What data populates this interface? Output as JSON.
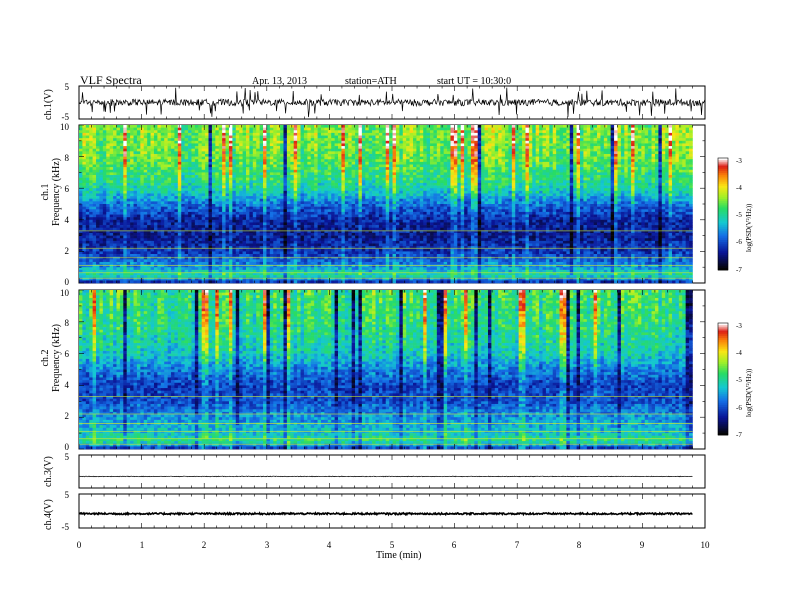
{
  "header": {
    "title": "VLF Spectra",
    "date": "Apr. 13, 2013",
    "station": "station=ATH",
    "start": "start UT =   10:30:0"
  },
  "chart_data": [
    {
      "type": "line",
      "name": "ch1-waveform",
      "ylabel": "ch.1(V)",
      "ylim": [
        -5,
        5
      ],
      "yticks": [
        "5",
        "-5"
      ],
      "xlim": [
        0,
        10
      ],
      "line_color": "#000000",
      "baseline_v": 0.0,
      "noise_amplitude_v": 1.0,
      "spike_amplitude_v": 4.5
    },
    {
      "type": "heatmap",
      "name": "ch1-spectrogram",
      "ylabel": "ch.1\nFrequency (kHz)",
      "ylim": [
        0,
        10
      ],
      "yticks": [
        "0",
        "2",
        "4",
        "6",
        "8",
        "10"
      ],
      "xlim": [
        0,
        9.8
      ],
      "colorbar": {
        "label": "log(PSD(V²/Hz))",
        "range": [
          -7,
          -3
        ],
        "ticks": [
          "-3",
          "-4",
          "-5",
          "-6",
          "-7"
        ]
      },
      "profile": [
        {
          "f": 0.0,
          "v": -6.4
        },
        {
          "f": 0.5,
          "v": -5.0
        },
        {
          "f": 1.0,
          "v": -5.6
        },
        {
          "f": 2.0,
          "v": -6.2
        },
        {
          "f": 3.0,
          "v": -6.4
        },
        {
          "f": 4.0,
          "v": -6.3
        },
        {
          "f": 5.0,
          "v": -5.8
        },
        {
          "f": 6.0,
          "v": -5.1
        },
        {
          "f": 8.0,
          "v": -4.6
        },
        {
          "f": 10.0,
          "v": -4.5
        }
      ]
    },
    {
      "type": "heatmap",
      "name": "ch2-spectrogram",
      "ylabel": "ch.2\nFrequency (kHz)",
      "ylim": [
        0,
        10
      ],
      "yticks": [
        "0",
        "2",
        "4",
        "6",
        "8",
        "10"
      ],
      "xlim": [
        0,
        9.8
      ],
      "colorbar": {
        "label": "log(PSD(V²/Hz))",
        "range": [
          -7,
          -3
        ],
        "ticks": [
          "-3",
          "-4",
          "-5",
          "-6",
          "-7"
        ]
      },
      "profile": [
        {
          "f": 0.0,
          "v": -6.2
        },
        {
          "f": 0.5,
          "v": -4.9
        },
        {
          "f": 1.0,
          "v": -5.3
        },
        {
          "f": 2.0,
          "v": -5.6
        },
        {
          "f": 3.0,
          "v": -6.0
        },
        {
          "f": 4.0,
          "v": -6.1
        },
        {
          "f": 5.0,
          "v": -5.7
        },
        {
          "f": 6.0,
          "v": -5.2
        },
        {
          "f": 8.0,
          "v": -4.9
        },
        {
          "f": 10.0,
          "v": -4.8
        }
      ]
    },
    {
      "type": "line",
      "name": "ch3-waveform",
      "ylabel": "ch.3(V)",
      "ylim": [
        -5,
        5
      ],
      "yticks": [
        "5"
      ],
      "xlim": [
        0,
        9.8
      ],
      "line_color": "#000000",
      "baseline_v": -1.5,
      "noise_amplitude_v": 0.1
    },
    {
      "type": "line",
      "name": "ch4-waveform",
      "ylabel": "ch.4(V)",
      "ylim": [
        -5,
        5
      ],
      "yticks": [
        "5",
        "-5"
      ],
      "xlim": [
        0,
        9.8
      ],
      "line_color": "#000000",
      "baseline_v": -0.8,
      "noise_amplitude_v": 0.25
    }
  ],
  "x_axis": {
    "label": "Time (min)",
    "ticks": [
      "0",
      "1",
      "2",
      "3",
      "4",
      "5",
      "6",
      "7",
      "8",
      "9",
      "10"
    ],
    "range": [
      0,
      10
    ]
  }
}
